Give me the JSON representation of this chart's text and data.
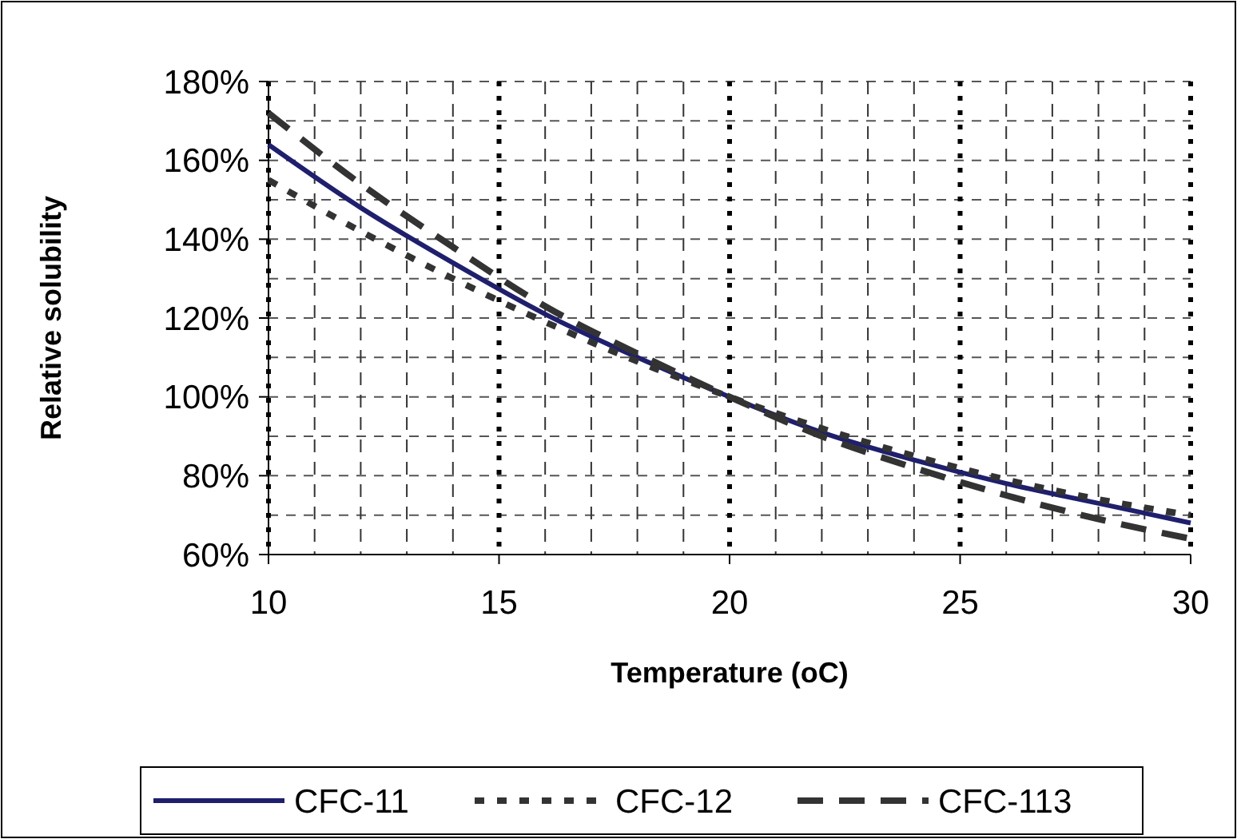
{
  "chart_data": {
    "type": "line",
    "xlabel": "Temperature (oC)",
    "ylabel": "Relative solubility",
    "x": [
      10,
      12,
      14,
      16,
      18,
      20,
      22,
      24,
      26,
      28,
      30
    ],
    "series": [
      {
        "name": "CFC-11",
        "color": "#1f1f6e",
        "line_style": "solid",
        "values": [
          164,
          148,
          134,
          121,
          110,
          100,
          91,
          84,
          78,
          73,
          68
        ]
      },
      {
        "name": "CFC-12",
        "color": "#333333",
        "line_style": "dotted",
        "values": [
          155,
          142,
          130,
          119,
          109,
          100,
          92,
          85,
          79,
          74,
          70
        ]
      },
      {
        "name": "CFC-113",
        "color": "#333333",
        "line_style": "dashed",
        "values": [
          172,
          154,
          138,
          123,
          111,
          100,
          90,
          82,
          75,
          69,
          64
        ]
      }
    ],
    "xlim": [
      10,
      30
    ],
    "xticks": [
      10,
      15,
      20,
      25,
      30
    ],
    "ylim": [
      60,
      180
    ],
    "yticks": [
      {
        "value": 60,
        "label": "60%"
      },
      {
        "value": 80,
        "label": "80%"
      },
      {
        "value": 100,
        "label": "100%"
      },
      {
        "value": 120,
        "label": "120%"
      },
      {
        "value": 140,
        "label": "140%"
      },
      {
        "value": 160,
        "label": "160%"
      },
      {
        "value": 180,
        "label": "180%"
      }
    ],
    "grid": true,
    "legend": "bottom",
    "marker": "none"
  }
}
